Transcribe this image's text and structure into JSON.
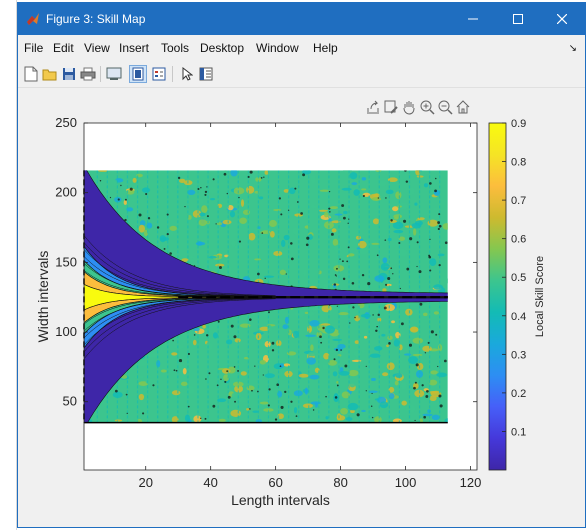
{
  "window": {
    "title": "Figure 3: Skill Map"
  },
  "menu": {
    "items": [
      "File",
      "Edit",
      "View",
      "Insert",
      "Tools",
      "Desktop",
      "Window",
      "Help"
    ],
    "overflow_glyph": "↘"
  },
  "toolbar": {
    "icons": [
      "new-figure-icon",
      "open-file-icon",
      "save-icon",
      "print-icon",
      "link-plot-icon",
      "dock-figure-icon",
      "insert-legend-icon",
      "pointer-icon",
      "property-editor-icon"
    ]
  },
  "axes_toolbar": {
    "icons": [
      "export-icon",
      "brush-icon",
      "pan-icon",
      "zoom-in-icon",
      "zoom-out-icon",
      "home-icon"
    ]
  },
  "chart_data": {
    "type": "heatmap",
    "xlabel": "Length intervals",
    "ylabel": "Width intervals",
    "xlim": [
      1,
      122
    ],
    "ylim": [
      1,
      250
    ],
    "xticks": [
      20,
      40,
      60,
      80,
      100,
      120
    ],
    "yticks": [
      50,
      100,
      150,
      200,
      250
    ],
    "colorbar": {
      "label": "Local Skill Score",
      "ticks": [
        0.1,
        0.2,
        0.3,
        0.4,
        0.5,
        0.6,
        0.7,
        0.8,
        0.9
      ],
      "range": [
        0,
        0.9
      ],
      "colormap": "parula"
    },
    "data_extent": {
      "x": [
        1,
        113
      ],
      "y": [
        35,
        216
      ]
    },
    "centerline_y": 125,
    "background_skill": 0.55,
    "grid": false
  },
  "colors": {
    "titlebar": "#1f6ec0",
    "window_bg": "#f0f0f0",
    "parula": [
      "#3e26a8",
      "#4538da",
      "#465ff8",
      "#2d8ef3",
      "#1aa9dc",
      "#13bbb5",
      "#3cc58e",
      "#84c750",
      "#cdba2f",
      "#fcbd3d",
      "#f5e425",
      "#f9fb0e"
    ]
  }
}
